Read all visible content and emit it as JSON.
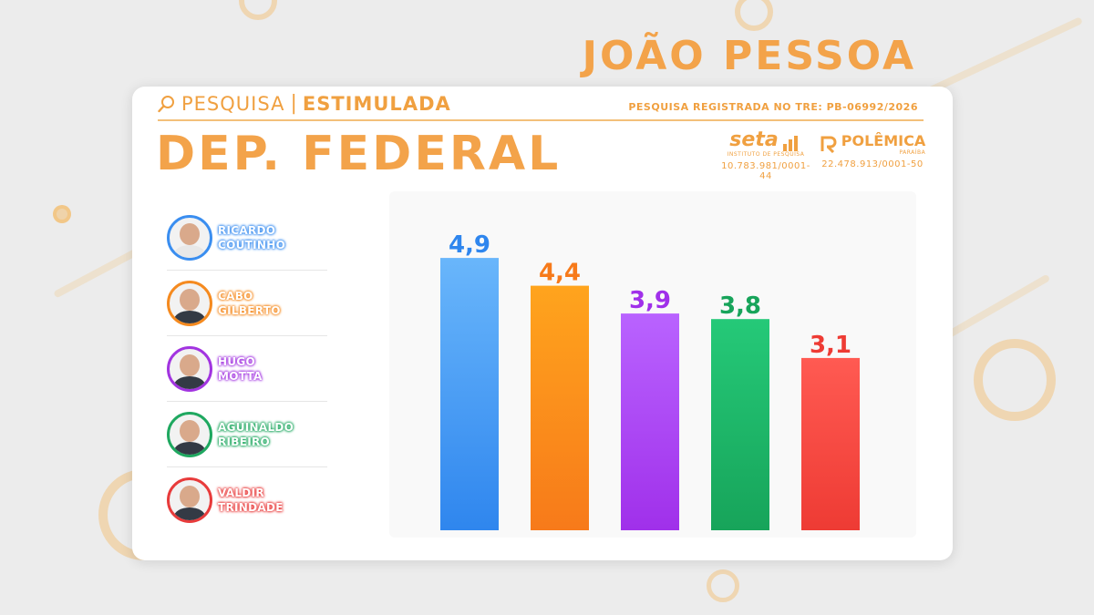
{
  "page": {
    "city": "JOÃO PESSOA",
    "header": {
      "pesquisa": "PESQUISA",
      "separator": "|",
      "estimulada": "ESTIMULADA",
      "registration": "PESQUISA REGISTRADA NO TRE: PB-06992/2026"
    },
    "title": "DEP. FEDERAL",
    "logos": [
      {
        "name": "seta",
        "sub": "INSTITUTO DE PESQUISA",
        "cnpj": "10.783.981/0001-44"
      },
      {
        "name": "POLÊMICA",
        "sub": "PARAÍBA",
        "cnpj": "22.478.913/0001-50"
      }
    ],
    "candidates": [
      {
        "line1": "RICARDO",
        "line2": "COUTINHO",
        "color": "#3a8ef0"
      },
      {
        "line1": "CABO",
        "line2": "GILBERTO",
        "color": "#f58a1f"
      },
      {
        "line1": "HUGO",
        "line2": "MOTTA",
        "color": "#a234e0"
      },
      {
        "line1": "AGUINALDO",
        "line2": "RIBEIRO",
        "color": "#1fa860"
      },
      {
        "line1": "VALDIR",
        "line2": "TRINDADE",
        "color": "#e83b3b"
      }
    ]
  },
  "chart_data": {
    "type": "bar",
    "categories": [
      "RICARDO COUTINHO",
      "CABO GILBERTO",
      "HUGO MOTTA",
      "AGUINALDO RIBEIRO",
      "VALDIR TRINDADE"
    ],
    "values": [
      4.9,
      4.4,
      3.9,
      3.8,
      3.1
    ],
    "value_labels": [
      "4,9",
      "4,4",
      "3,9",
      "3,8",
      "3,1"
    ],
    "colors": [
      "#2f86ee",
      "#f77a1a",
      "#a030ea",
      "#17a45a",
      "#ee3b34"
    ],
    "colors_light": [
      "#69b6fb",
      "#ffa41d",
      "#b963ff",
      "#25c978",
      "#ff5a52"
    ],
    "ylim": [
      0,
      5
    ],
    "grid": false,
    "title": "",
    "xlabel": "",
    "ylabel": ""
  }
}
